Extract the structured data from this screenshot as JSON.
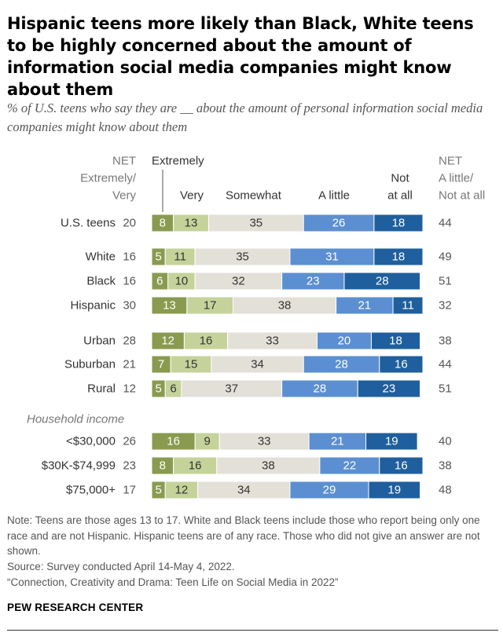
{
  "title": "Hispanic teens more likely than Black, White teens to be highly concerned about the amount of information social media companies might know about them",
  "subtitle": "% of U.S. teens who say they are __ about the amount of personal information social media companies might know about them",
  "chart_data": {
    "type": "bar",
    "orientation": "horizontal-stacked",
    "header": {
      "net_left": [
        "NET",
        "Extremely/",
        "Very"
      ],
      "net_right": [
        "NET",
        "A little/",
        "Not at all"
      ],
      "extremely": "Extremely",
      "very": "Very",
      "somewhat": "Somewhat",
      "a_little": "A little",
      "not_at_all": [
        "Not",
        "at all"
      ]
    },
    "series": [
      {
        "name": "Extremely",
        "color": "#8a9a4f",
        "text_color": "#ffffff"
      },
      {
        "name": "Very",
        "color": "#c5d39a",
        "text_color": "#333333"
      },
      {
        "name": "Somewhat",
        "color": "#e3e0d8",
        "text_color": "#333333"
      },
      {
        "name": "A little",
        "color": "#5b8fd1",
        "text_color": "#ffffff"
      },
      {
        "name": "Not at all",
        "color": "#1f5f9d",
        "text_color": "#ffffff"
      }
    ],
    "section_label": "Household income",
    "rows": [
      {
        "label": "U.S. teens",
        "net_left": "20",
        "net_right": "44",
        "values": [
          8,
          13,
          35,
          26,
          18
        ]
      },
      {
        "label": "White",
        "net_left": "16",
        "net_right": "49",
        "values": [
          5,
          11,
          35,
          31,
          18
        ]
      },
      {
        "label": "Black",
        "net_left": "16",
        "net_right": "51",
        "values": [
          6,
          10,
          32,
          23,
          28
        ]
      },
      {
        "label": "Hispanic",
        "net_left": "30",
        "net_right": "32",
        "values": [
          13,
          17,
          38,
          21,
          11
        ]
      },
      {
        "label": "Urban",
        "net_left": "28",
        "net_right": "38",
        "values": [
          12,
          16,
          33,
          20,
          18
        ]
      },
      {
        "label": "Suburban",
        "net_left": "21",
        "net_right": "44",
        "values": [
          7,
          15,
          34,
          28,
          16
        ]
      },
      {
        "label": "Rural",
        "net_left": "12",
        "net_right": "51",
        "values": [
          5,
          6,
          37,
          28,
          23
        ]
      },
      {
        "label": "<$30,000",
        "net_left": "26",
        "net_right": "40",
        "values": [
          16,
          9,
          33,
          21,
          19
        ]
      },
      {
        "label": "$30K-$74,999",
        "net_left": "23",
        "net_right": "38",
        "values": [
          8,
          16,
          38,
          22,
          16
        ]
      },
      {
        "label": "$75,000+",
        "net_left": "17",
        "net_right": "48",
        "values": [
          5,
          12,
          34,
          29,
          19
        ]
      }
    ],
    "xlim": [
      0,
      100
    ]
  },
  "footer": {
    "note": "Note: Teens are those ages 13 to 17. White and Black teens include those who report being only one race and are not Hispanic. Hispanic teens are of any race. Those who did not give an answer are not shown.",
    "source": "Source: Survey conducted April 14-May 4, 2022.",
    "report": "“Connection, Creativity and Drama: Teen Life on Social Media in 2022”",
    "org": "PEW RESEARCH CENTER"
  }
}
